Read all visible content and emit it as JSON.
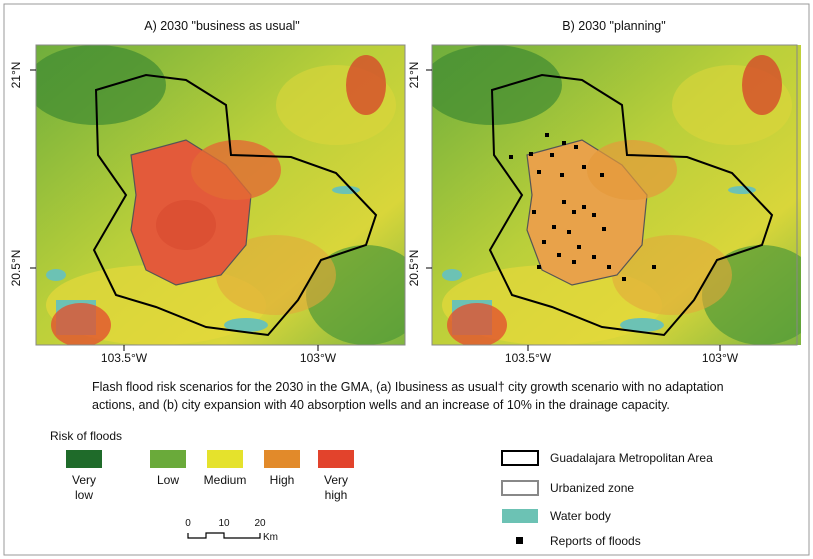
{
  "panels": [
    {
      "title": "A) 2030 \"business as usual\"",
      "lat_labels": [
        "21°N",
        "20.5°N"
      ],
      "lon_labels": [
        "103.5°W",
        "103°W"
      ]
    },
    {
      "title": "B) 2030 \"planning\"",
      "lat_labels": [
        "21°N",
        "20.5°N"
      ],
      "lon_labels": [
        "103.5°W",
        "103°W"
      ]
    }
  ],
  "caption": "Flash flood risk scenarios for the 2030 in the GMA, (a) Ibusiness as usual† city growth scenario with no adaptation actions, and (b) city expansion with 40 absorption wells and an increase of 10% in the drainage capacity.",
  "risk_legend": {
    "title": "Risk of floods",
    "classes": [
      {
        "label": "Very low",
        "color": "#1f6b2a"
      },
      {
        "label": "Low",
        "color": "#6aaa3a"
      },
      {
        "label": "Medium",
        "color": "#e5e22c"
      },
      {
        "label": "High",
        "color": "#e28a2a"
      },
      {
        "label": "Very high",
        "color": "#e2432c"
      }
    ]
  },
  "scale": {
    "ticks": [
      "0",
      "10",
      "20"
    ],
    "unit": "Km"
  },
  "map_legend": [
    "Guadalajara Metropolitan Area",
    "Urbanized zone",
    "Water body",
    "Reports of floods"
  ]
}
